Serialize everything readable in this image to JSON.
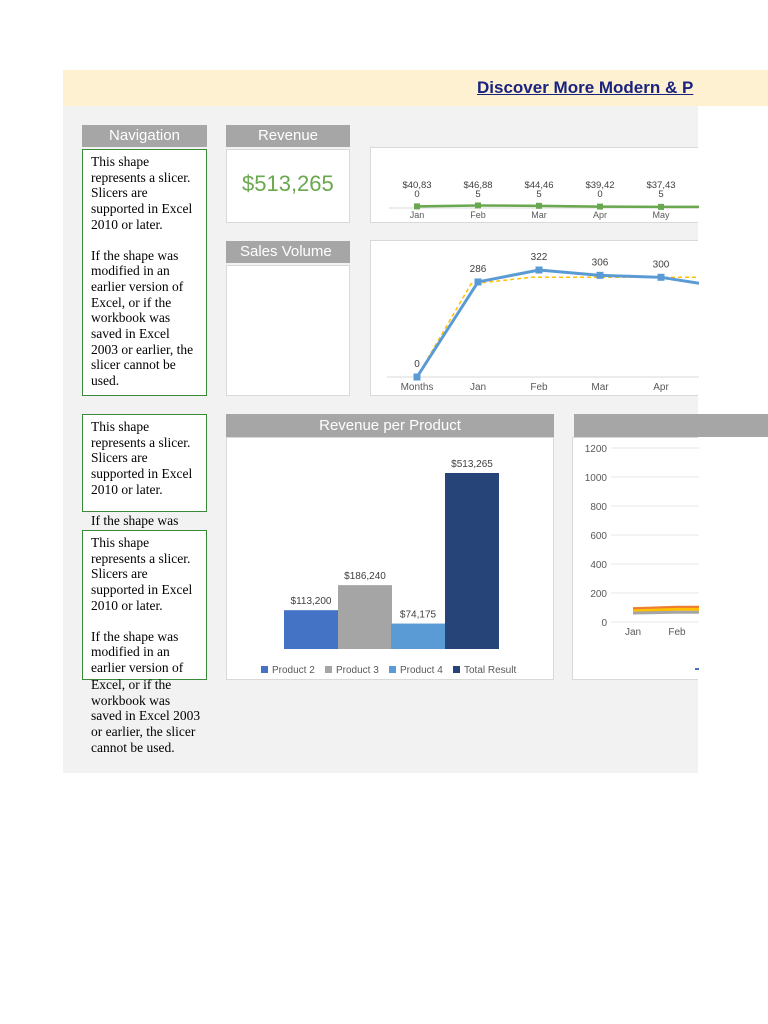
{
  "banner": {
    "link_text": "Discover More Modern & P"
  },
  "navigation": {
    "header": "Navigation",
    "slicer_p1": "This shape represents a slicer. Slicers are supported in Excel 2010 or later.",
    "slicer_p2": "If the shape was modified in an earlier version of Excel, or if the workbook was saved in Excel 2003 or earlier, the slicer cannot be used."
  },
  "slicer2": {
    "text": "This shape represents a slicer. Slicers are supported in Excel 2010 or later."
  },
  "loose_text": {
    "top": "If the shape was",
    "bottom": "Excel, or if the workbook was saved in Excel 2003 or earlier, the slicer cannot be used."
  },
  "slicer3": {
    "p1": "This shape represents a slicer. Slicers are supported in Excel 2010 or later.",
    "p2": "If the shape was modified in an earlier version of"
  },
  "revenue": {
    "header": "Revenue",
    "value": "$513,265"
  },
  "sales_volume": {
    "header": "Sales Volume"
  },
  "colors": {
    "green": "#6aa84f",
    "blue": "#5b9bd5",
    "header_gray": "#a6a6a6",
    "dark_blue": "#264478"
  },
  "chart_data": [
    {
      "type": "line",
      "categories": [
        "Jan",
        "Feb",
        "Mar",
        "Apr",
        "May"
      ],
      "series": [
        {
          "values": [
            40830,
            46885,
            44465,
            39420,
            37435
          ]
        }
      ],
      "data_labels": [
        "$40,83 0",
        "$46,88 5",
        "$44,46 5",
        "$39,42 0",
        "$37,43 5"
      ]
    },
    {
      "type": "line",
      "categories": [
        "Months",
        "Jan",
        "Feb",
        "Mar",
        "Apr"
      ],
      "series": [
        {
          "values": [
            0,
            286,
            322,
            306,
            300
          ]
        }
      ],
      "trendline": true
    },
    {
      "type": "bar",
      "title": "Revenue per Product",
      "categories": [
        "Product 2",
        "Product 3",
        "Product 4",
        "Total Result"
      ],
      "values": [
        113200,
        186240,
        74175,
        513265
      ],
      "data_labels": [
        "$113,200",
        "$186,240",
        "$74,175",
        "$513,265"
      ],
      "colors": [
        "#4472c4",
        "#a5a5a5",
        "#5b9bd5",
        "#264478"
      ],
      "legend": "bottom"
    },
    {
      "type": "area",
      "categories": [
        "Jan",
        "Feb"
      ],
      "y_ticks": [
        "1200",
        "1000",
        "800",
        "600",
        "400",
        "200",
        "0"
      ],
      "ylim": [
        0,
        1200
      ],
      "series": [
        {
          "values": [
            85,
            95
          ],
          "color": "#ed7d31"
        },
        {
          "values": [
            70,
            80
          ],
          "color": "#ffc000"
        },
        {
          "values": [
            55,
            60
          ],
          "color": "#a5a5a5"
        }
      ]
    }
  ]
}
